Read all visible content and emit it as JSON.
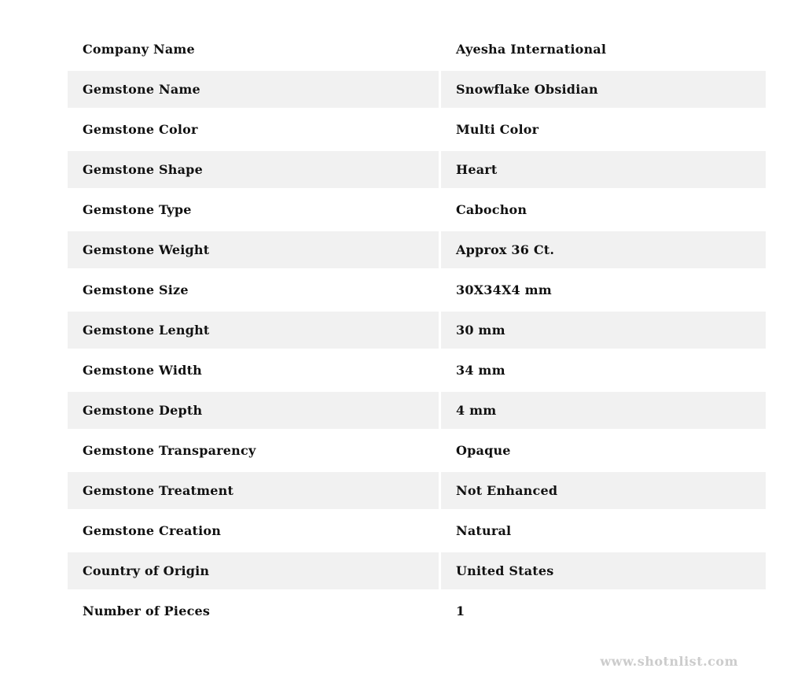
{
  "page": {
    "background": "#ffffff",
    "stripe_color": "#f1f1f1",
    "text_color": "#111111"
  },
  "table": {
    "rows": [
      {
        "label": "Company Name",
        "value": "Ayesha International"
      },
      {
        "label": "Gemstone Name",
        "value": "Snowflake Obsidian"
      },
      {
        "label": "Gemstone Color",
        "value": "Multi Color"
      },
      {
        "label": "Gemstone Shape",
        "value": "Heart"
      },
      {
        "label": "Gemstone Type",
        "value": "Cabochon"
      },
      {
        "label": "Gemstone Weight",
        "value": "Approx 36 Ct."
      },
      {
        "label": "Gemstone Size",
        "value": "30X34X4 mm"
      },
      {
        "label": "Gemstone Lenght",
        "value": "30 mm"
      },
      {
        "label": "Gemstone Width",
        "value": "34 mm"
      },
      {
        "label": "Gemstone Depth",
        "value": "4 mm"
      },
      {
        "label": "Gemstone Transparency",
        "value": "Opaque"
      },
      {
        "label": "Gemstone Treatment",
        "value": "Not Enhanced"
      },
      {
        "label": "Gemstone Creation",
        "value": "Natural"
      },
      {
        "label": "Country of Origin",
        "value": "United States"
      },
      {
        "label": "Number of Pieces",
        "value": "1"
      }
    ]
  },
  "footer": {
    "website": "www.shotnlist.com",
    "color": "#cccccc"
  }
}
